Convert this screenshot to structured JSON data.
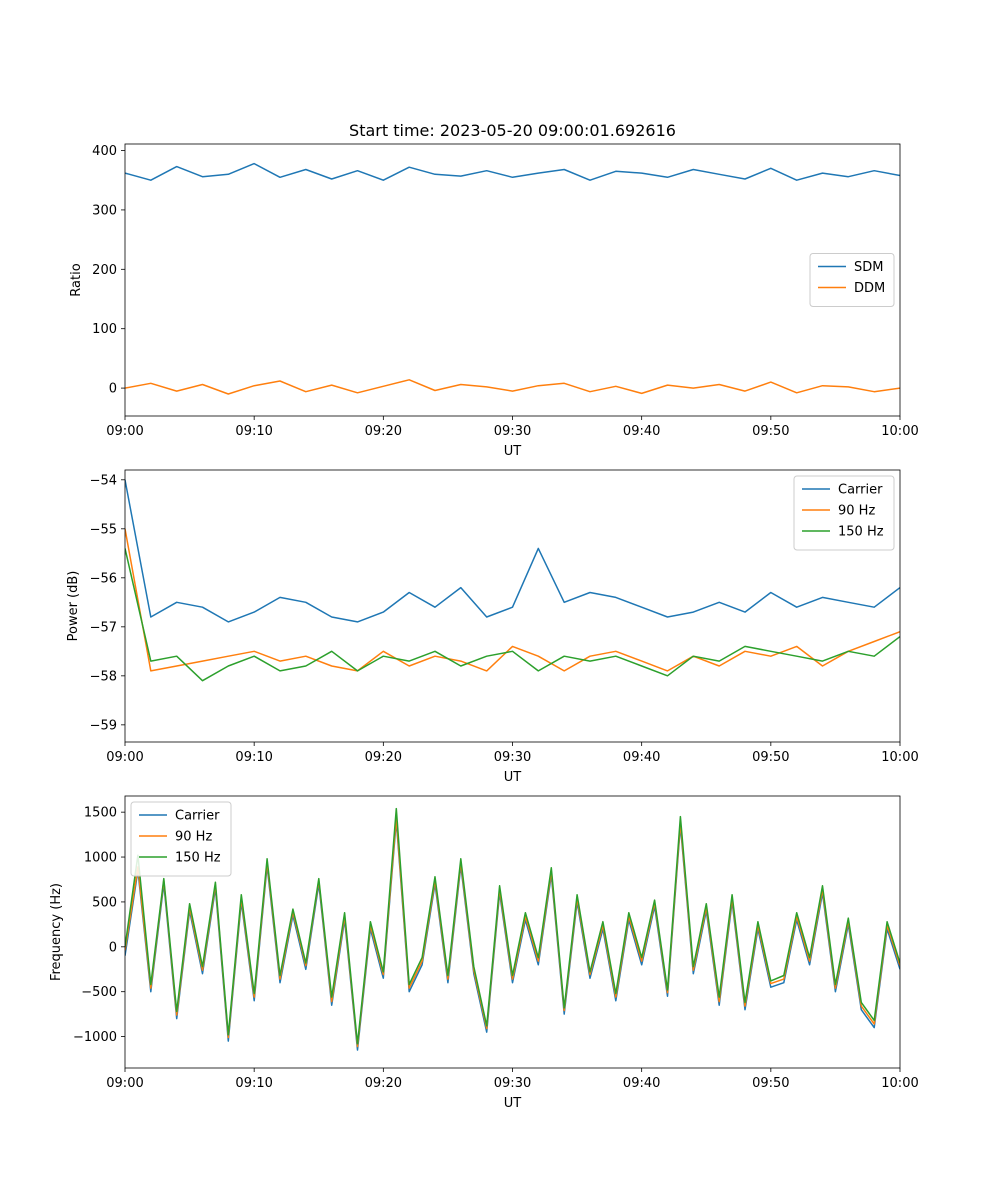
{
  "figure_title": "Start time: 2023-05-20 09:00:01.692616",
  "colors": {
    "blue": "#1f77b4",
    "orange": "#ff7f0e",
    "green": "#2ca02c"
  },
  "chart_data": [
    {
      "type": "line",
      "title": "Start time: 2023-05-20 09:00:01.692616",
      "xlabel": "UT",
      "ylabel": "Ratio",
      "xlim": [
        0,
        60
      ],
      "ylim": [
        -47,
        411
      ],
      "x_ticks": [
        0,
        10,
        20,
        30,
        40,
        50,
        60
      ],
      "x_tick_labels": [
        "09:00",
        "09:10",
        "09:20",
        "09:30",
        "09:40",
        "09:50",
        "10:00"
      ],
      "y_ticks": [
        0,
        100,
        200,
        300,
        400
      ],
      "y_tick_labels": [
        "0",
        "100",
        "200",
        "300",
        "400"
      ],
      "legend_position": "center-right",
      "grid": false,
      "x_minutes": [
        0,
        2,
        4,
        6,
        8,
        10,
        12,
        14,
        16,
        18,
        20,
        22,
        24,
        26,
        28,
        30,
        32,
        34,
        36,
        38,
        40,
        42,
        44,
        46,
        48,
        50,
        52,
        54,
        56,
        58,
        60
      ],
      "series": [
        {
          "name": "SDM",
          "color": "#1f77b4",
          "values": [
            362,
            350,
            373,
            356,
            360,
            378,
            355,
            368,
            352,
            366,
            350,
            372,
            360,
            357,
            366,
            355,
            362,
            368,
            350,
            365,
            362,
            355,
            368,
            360,
            352,
            370,
            350,
            362,
            356,
            366,
            358
          ]
        },
        {
          "name": "DDM",
          "color": "#ff7f0e",
          "values": [
            0,
            8,
            -5,
            6,
            -10,
            4,
            12,
            -6,
            5,
            -8,
            3,
            14,
            -4,
            6,
            2,
            -5,
            4,
            8,
            -6,
            3,
            -9,
            5,
            0,
            6,
            -5,
            10,
            -8,
            4,
            2,
            -6,
            0
          ]
        }
      ]
    },
    {
      "type": "line",
      "xlabel": "UT",
      "ylabel": "Power (dB)",
      "xlim": [
        0,
        60
      ],
      "ylim": [
        -59.35,
        -53.8
      ],
      "x_ticks": [
        0,
        10,
        20,
        30,
        40,
        50,
        60
      ],
      "x_tick_labels": [
        "09:00",
        "09:10",
        "09:20",
        "09:30",
        "09:40",
        "09:50",
        "10:00"
      ],
      "y_ticks": [
        -59,
        -58,
        -57,
        -56,
        -55,
        -54
      ],
      "y_tick_labels": [
        "−59",
        "−58",
        "−57",
        "−56",
        "−55",
        "−54"
      ],
      "legend_position": "top-right",
      "grid": false,
      "x_minutes": [
        0,
        2,
        4,
        6,
        8,
        10,
        12,
        14,
        16,
        18,
        20,
        22,
        24,
        26,
        28,
        30,
        32,
        34,
        36,
        38,
        40,
        42,
        44,
        46,
        48,
        50,
        52,
        54,
        56,
        58,
        60
      ],
      "series": [
        {
          "name": "Carrier",
          "color": "#1f77b4",
          "values": [
            -54.0,
            -56.8,
            -56.5,
            -56.6,
            -56.9,
            -56.7,
            -56.4,
            -56.5,
            -56.8,
            -56.9,
            -56.7,
            -56.3,
            -56.6,
            -56.2,
            -56.8,
            -56.6,
            -55.4,
            -56.5,
            -56.3,
            -56.4,
            -56.6,
            -56.8,
            -56.7,
            -56.5,
            -56.7,
            -56.3,
            -56.6,
            -56.4,
            -56.5,
            -56.6,
            -56.2
          ]
        },
        {
          "name": "90 Hz",
          "color": "#ff7f0e",
          "values": [
            -55.0,
            -57.9,
            -57.8,
            -57.7,
            -57.6,
            -57.5,
            -57.7,
            -57.6,
            -57.8,
            -57.9,
            -57.5,
            -57.8,
            -57.6,
            -57.7,
            -57.9,
            -57.4,
            -57.6,
            -57.9,
            -57.6,
            -57.5,
            -57.7,
            -57.9,
            -57.6,
            -57.8,
            -57.5,
            -57.6,
            -57.4,
            -57.8,
            -57.5,
            -57.3,
            -57.1
          ]
        },
        {
          "name": "150 Hz",
          "color": "#2ca02c",
          "values": [
            -55.4,
            -57.7,
            -57.6,
            -58.1,
            -57.8,
            -57.6,
            -57.9,
            -57.8,
            -57.5,
            -57.9,
            -57.6,
            -57.7,
            -57.5,
            -57.8,
            -57.6,
            -57.5,
            -57.9,
            -57.6,
            -57.7,
            -57.6,
            -57.8,
            -58.0,
            -57.6,
            -57.7,
            -57.4,
            -57.5,
            -57.6,
            -57.7,
            -57.5,
            -57.6,
            -57.2
          ]
        }
      ]
    },
    {
      "type": "line",
      "xlabel": "UT",
      "ylabel": "Frequency (Hz)",
      "xlim": [
        0,
        60
      ],
      "ylim": [
        -1350,
        1680
      ],
      "x_ticks": [
        0,
        10,
        20,
        30,
        40,
        50,
        60
      ],
      "x_tick_labels": [
        "09:00",
        "09:10",
        "09:20",
        "09:30",
        "09:40",
        "09:50",
        "10:00"
      ],
      "y_ticks": [
        -1000,
        -500,
        0,
        500,
        1000,
        1500
      ],
      "y_tick_labels": [
        "−1000",
        "−500",
        "0",
        "500",
        "1000",
        "1500"
      ],
      "legend_position": "top-left",
      "grid": false,
      "x_minutes": [
        0,
        1,
        2,
        3,
        4,
        5,
        6,
        7,
        8,
        9,
        10,
        11,
        12,
        13,
        14,
        15,
        16,
        17,
        18,
        19,
        20,
        21,
        22,
        23,
        24,
        25,
        26,
        27,
        28,
        29,
        30,
        31,
        32,
        33,
        34,
        35,
        36,
        37,
        38,
        39,
        40,
        41,
        42,
        43,
        44,
        45,
        46,
        47,
        48,
        49,
        50,
        51,
        52,
        53,
        54,
        55,
        56,
        57,
        58,
        59,
        60
      ],
      "series": [
        {
          "name": "Carrier",
          "color": "#1f77b4",
          "values": [
            -100,
            850,
            -500,
            700,
            -800,
            400,
            -300,
            650,
            -1050,
            500,
            -600,
            900,
            -400,
            350,
            -250,
            700,
            -650,
            300,
            -1150,
            200,
            -350,
            1400,
            -500,
            -200,
            700,
            -400,
            900,
            -300,
            -950,
            600,
            -400,
            300,
            -200,
            800,
            -750,
            500,
            -350,
            200,
            -600,
            300,
            -200,
            450,
            -550,
            1350,
            -300,
            400,
            -650,
            500,
            -700,
            200,
            -450,
            -400,
            300,
            -200,
            600,
            -500,
            250,
            -700,
            -900,
            200,
            -250
          ]
        },
        {
          "name": "90 Hz",
          "color": "#ff7f0e",
          "values": [
            -40,
            890,
            -460,
            740,
            -760,
            440,
            -260,
            690,
            -1010,
            540,
            -560,
            940,
            -360,
            390,
            -210,
            740,
            -610,
            340,
            -1110,
            240,
            -310,
            1440,
            -460,
            -160,
            740,
            -360,
            940,
            -260,
            -910,
            640,
            -360,
            340,
            -160,
            840,
            -710,
            540,
            -310,
            240,
            -560,
            340,
            -160,
            490,
            -510,
            1390,
            -260,
            440,
            -610,
            540,
            -660,
            240,
            -410,
            -360,
            340,
            -160,
            640,
            -460,
            290,
            -660,
            -860,
            240,
            -210
          ]
        },
        {
          "name": "150 Hz",
          "color": "#2ca02c",
          "values": [
            0,
            1020,
            -420,
            760,
            -720,
            480,
            -220,
            720,
            -980,
            580,
            -520,
            980,
            -320,
            420,
            -180,
            760,
            -560,
            380,
            -1080,
            280,
            -280,
            1540,
            -420,
            -120,
            780,
            -320,
            980,
            -220,
            -880,
            680,
            -320,
            380,
            -120,
            880,
            -680,
            580,
            -280,
            280,
            -520,
            380,
            -120,
            520,
            -480,
            1450,
            -220,
            480,
            -560,
            580,
            -620,
            280,
            -380,
            -320,
            380,
            -120,
            680,
            -420,
            320,
            -620,
            -820,
            280,
            -180
          ]
        }
      ]
    }
  ]
}
